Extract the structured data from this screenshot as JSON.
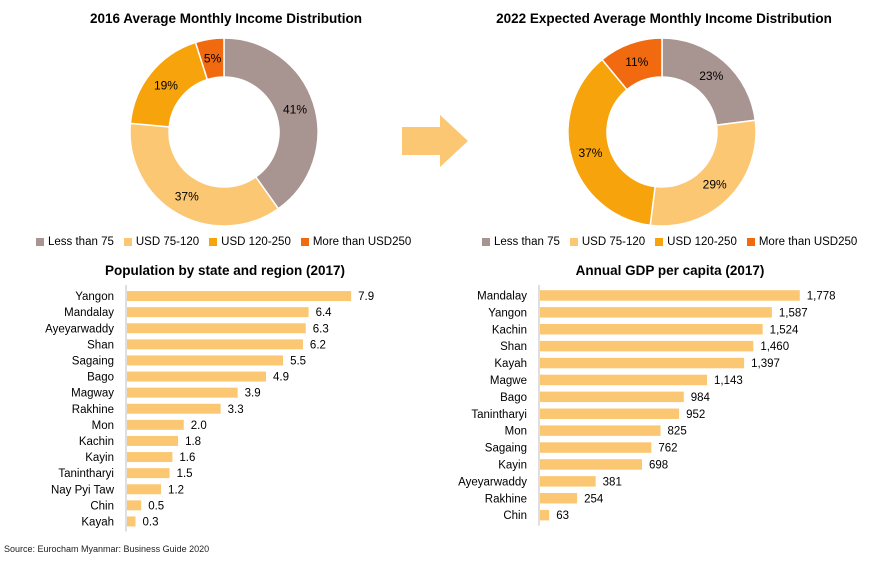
{
  "colors": {
    "less_than_75": "#a89490",
    "usd_75_120": "#fbc773",
    "usd_120_250": "#f7a30b",
    "more_than_250": "#f26a10",
    "bar": "#fbc773",
    "arrow": "#fbc773"
  },
  "chart_data": [
    {
      "type": "pie",
      "title": "2016 Average Monthly Income Distribution",
      "categories": [
        "Less than 75",
        "USD 75-120",
        "USD 120-250",
        "More than USD250"
      ],
      "values": [
        41,
        37,
        19,
        5
      ],
      "labels": [
        "41%",
        "37%",
        "19%",
        "5%"
      ],
      "donut": true,
      "legend": "bottom"
    },
    {
      "type": "pie",
      "title": "2022 Expected Average Monthly Income Distribution",
      "categories": [
        "Less than 75",
        "USD 75-120",
        "USD 120-250",
        "More than USD250"
      ],
      "values": [
        23,
        29,
        37,
        11
      ],
      "labels": [
        "23%",
        "29%",
        "37%",
        "11%"
      ],
      "donut": true,
      "legend": "bottom"
    },
    {
      "type": "bar",
      "orientation": "horizontal",
      "title": "Population by state and region (2017)",
      "categories": [
        "Yangon",
        "Mandalay",
        "Ayeyarwaddy",
        "Shan",
        "Sagaing",
        "Bago",
        "Magway",
        "Rakhine",
        "Mon",
        "Kachin",
        "Kayin",
        "Tanintharyi",
        "Nay Pyi Taw",
        "Chin",
        "Kayah"
      ],
      "values": [
        7.9,
        6.4,
        6.3,
        6.2,
        5.5,
        4.9,
        3.9,
        3.3,
        2.0,
        1.8,
        1.6,
        1.5,
        1.2,
        0.5,
        0.3
      ],
      "labels": [
        "7.9",
        "6.4",
        "6.3",
        "6.2",
        "5.5",
        "4.9",
        "3.9",
        "3.3",
        "2.0",
        "1.8",
        "1.6",
        "1.5",
        "1.2",
        "0.5",
        "0.3"
      ],
      "xlim": [
        0,
        8
      ]
    },
    {
      "type": "bar",
      "orientation": "horizontal",
      "title": "Annual GDP per capita (2017)",
      "categories": [
        "Mandalay",
        "Yangon",
        "Kachin",
        "Shan",
        "Kayah",
        "Magwe",
        "Bago",
        "Tanintharyi",
        "Mon",
        "Sagaing",
        "Kayin",
        "Ayeyarwaddy",
        "Rakhine",
        "Chin"
      ],
      "values": [
        1778,
        1587,
        1524,
        1460,
        1397,
        1143,
        984,
        952,
        825,
        762,
        698,
        381,
        254,
        63
      ],
      "labels": [
        "1,778",
        "1,587",
        "1,524",
        "1,460",
        "1,397",
        "1,143",
        "984",
        "952",
        "825",
        "762",
        "698",
        "381",
        "254",
        "63"
      ],
      "xlim": [
        0,
        1800
      ]
    }
  ],
  "source": "Source: Eurocham Myanmar: Business Guide 2020"
}
